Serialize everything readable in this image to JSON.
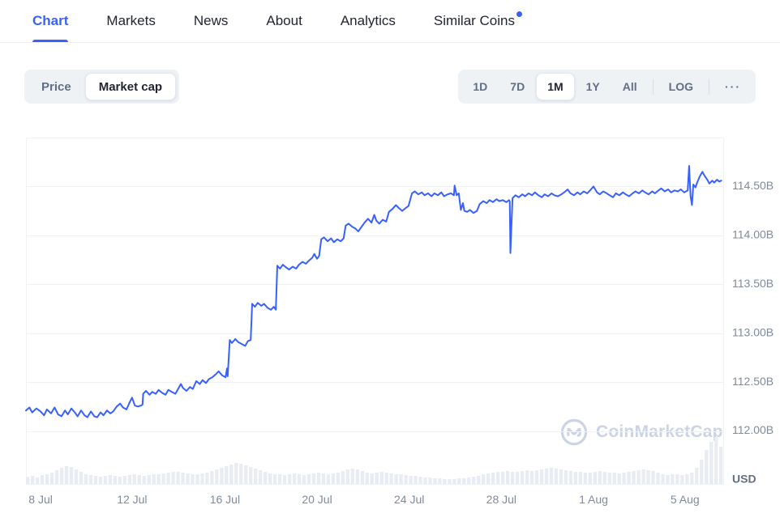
{
  "nav": {
    "tabs": [
      {
        "label": "Chart",
        "active": true
      },
      {
        "label": "Markets",
        "active": false
      },
      {
        "label": "News",
        "active": false
      },
      {
        "label": "About",
        "active": false
      },
      {
        "label": "Analytics",
        "active": false
      },
      {
        "label": "Similar Coins",
        "active": false,
        "badge_dot": true
      }
    ]
  },
  "controls": {
    "metric_toggle": {
      "options": [
        {
          "label": "Price",
          "selected": false
        },
        {
          "label": "Market cap",
          "selected": true
        }
      ]
    },
    "range_buttons": [
      {
        "label": "1D",
        "selected": false
      },
      {
        "label": "7D",
        "selected": false
      },
      {
        "label": "1M",
        "selected": true
      },
      {
        "label": "1Y",
        "selected": false
      },
      {
        "label": "All",
        "selected": false
      }
    ],
    "scale_button": {
      "label": "LOG"
    },
    "more_button": {
      "label": "···"
    }
  },
  "watermark": {
    "text": "CoinMarketCap"
  },
  "chart_data": {
    "type": "line",
    "series_name": "Market cap",
    "unit_label": "USD",
    "legend": false,
    "grid": true,
    "ylim": [
      111.45,
      115.0
    ],
    "y_ticks": [
      {
        "v": 114.5,
        "label": "114.50B"
      },
      {
        "v": 114.0,
        "label": "114.00B"
      },
      {
        "v": 113.5,
        "label": "113.50B"
      },
      {
        "v": 113.0,
        "label": "113.00B"
      },
      {
        "v": 112.5,
        "label": "112.50B"
      },
      {
        "v": 112.0,
        "label": "112.00B"
      }
    ],
    "unit_tick_v": 111.5,
    "x_ticks": [
      {
        "u": 0.021,
        "label": "8 Jul"
      },
      {
        "u": 0.152,
        "label": "12 Jul"
      },
      {
        "u": 0.285,
        "label": "16 Jul"
      },
      {
        "u": 0.417,
        "label": "20 Jul"
      },
      {
        "u": 0.549,
        "label": "24 Jul"
      },
      {
        "u": 0.681,
        "label": "28 Jul"
      },
      {
        "u": 0.813,
        "label": "1 Aug"
      },
      {
        "u": 0.944,
        "label": "5 Aug"
      }
    ],
    "colors": {
      "line": "#3861fb",
      "grid": "#f0f2f6",
      "axis_text": "#808a9d",
      "unit_text": "#616e85",
      "volume": "#e9edf3",
      "watermark": "#ccd3e2",
      "accent": "#3861fb"
    },
    "points": [
      [
        0.0,
        112.21
      ],
      [
        0.005,
        112.24
      ],
      [
        0.009,
        112.19
      ],
      [
        0.015,
        112.23
      ],
      [
        0.021,
        112.2
      ],
      [
        0.026,
        112.16
      ],
      [
        0.03,
        112.22
      ],
      [
        0.036,
        112.18
      ],
      [
        0.041,
        112.24
      ],
      [
        0.046,
        112.17
      ],
      [
        0.051,
        112.15
      ],
      [
        0.056,
        112.21
      ],
      [
        0.06,
        112.17
      ],
      [
        0.065,
        112.23
      ],
      [
        0.07,
        112.19
      ],
      [
        0.074,
        112.15
      ],
      [
        0.079,
        112.21
      ],
      [
        0.084,
        112.16
      ],
      [
        0.088,
        112.14
      ],
      [
        0.093,
        112.2
      ],
      [
        0.098,
        112.15
      ],
      [
        0.102,
        112.14
      ],
      [
        0.107,
        112.19
      ],
      [
        0.111,
        112.16
      ],
      [
        0.116,
        112.21
      ],
      [
        0.121,
        112.18
      ],
      [
        0.125,
        112.2
      ],
      [
        0.13,
        112.25
      ],
      [
        0.135,
        112.28
      ],
      [
        0.139,
        112.24
      ],
      [
        0.144,
        112.22
      ],
      [
        0.149,
        112.3
      ],
      [
        0.152,
        112.34
      ],
      [
        0.156,
        112.26
      ],
      [
        0.16,
        112.25
      ],
      [
        0.165,
        112.26
      ],
      [
        0.167,
        112.27
      ],
      [
        0.168,
        112.38
      ],
      [
        0.172,
        112.41
      ],
      [
        0.177,
        112.37
      ],
      [
        0.181,
        112.4
      ],
      [
        0.186,
        112.38
      ],
      [
        0.19,
        112.42
      ],
      [
        0.195,
        112.39
      ],
      [
        0.2,
        112.37
      ],
      [
        0.204,
        112.42
      ],
      [
        0.209,
        112.4
      ],
      [
        0.214,
        112.38
      ],
      [
        0.218,
        112.43
      ],
      [
        0.222,
        112.48
      ],
      [
        0.225,
        112.44
      ],
      [
        0.23,
        112.41
      ],
      [
        0.235,
        112.45
      ],
      [
        0.239,
        112.43
      ],
      [
        0.244,
        112.51
      ],
      [
        0.249,
        112.48
      ],
      [
        0.253,
        112.52
      ],
      [
        0.258,
        112.49
      ],
      [
        0.262,
        112.53
      ],
      [
        0.267,
        112.55
      ],
      [
        0.272,
        112.58
      ],
      [
        0.276,
        112.61
      ],
      [
        0.281,
        112.57
      ],
      [
        0.286,
        112.55
      ],
      [
        0.288,
        112.64
      ],
      [
        0.289,
        112.56
      ],
      [
        0.292,
        112.93
      ],
      [
        0.295,
        112.9
      ],
      [
        0.3,
        112.94
      ],
      [
        0.304,
        112.91
      ],
      [
        0.309,
        112.89
      ],
      [
        0.314,
        112.87
      ],
      [
        0.318,
        112.92
      ],
      [
        0.322,
        112.93
      ],
      [
        0.324,
        113.3
      ],
      [
        0.328,
        113.27
      ],
      [
        0.332,
        113.31
      ],
      [
        0.337,
        113.28
      ],
      [
        0.341,
        113.3
      ],
      [
        0.346,
        113.26
      ],
      [
        0.351,
        113.24
      ],
      [
        0.355,
        113.27
      ],
      [
        0.358,
        113.24
      ],
      [
        0.36,
        113.69
      ],
      [
        0.364,
        113.66
      ],
      [
        0.368,
        113.7
      ],
      [
        0.373,
        113.67
      ],
      [
        0.377,
        113.65
      ],
      [
        0.382,
        113.68
      ],
      [
        0.387,
        113.66
      ],
      [
        0.391,
        113.7
      ],
      [
        0.396,
        113.73
      ],
      [
        0.401,
        113.71
      ],
      [
        0.405,
        113.74
      ],
      [
        0.41,
        113.77
      ],
      [
        0.413,
        113.81
      ],
      [
        0.417,
        113.76
      ],
      [
        0.42,
        113.79
      ],
      [
        0.423,
        113.96
      ],
      [
        0.427,
        113.98
      ],
      [
        0.432,
        113.94
      ],
      [
        0.437,
        113.97
      ],
      [
        0.441,
        113.93
      ],
      [
        0.446,
        113.96
      ],
      [
        0.451,
        113.94
      ],
      [
        0.455,
        113.97
      ],
      [
        0.458,
        114.1
      ],
      [
        0.462,
        114.12
      ],
      [
        0.467,
        114.09
      ],
      [
        0.472,
        114.07
      ],
      [
        0.476,
        114.04
      ],
      [
        0.481,
        114.09
      ],
      [
        0.485,
        114.13
      ],
      [
        0.49,
        114.17
      ],
      [
        0.495,
        114.13
      ],
      [
        0.499,
        114.21
      ],
      [
        0.502,
        114.15
      ],
      [
        0.506,
        114.12
      ],
      [
        0.511,
        114.16
      ],
      [
        0.516,
        114.14
      ],
      [
        0.52,
        114.24
      ],
      [
        0.525,
        114.27
      ],
      [
        0.53,
        114.31
      ],
      [
        0.534,
        114.28
      ],
      [
        0.539,
        114.25
      ],
      [
        0.544,
        114.28
      ],
      [
        0.548,
        114.3
      ],
      [
        0.553,
        114.43
      ],
      [
        0.557,
        114.45
      ],
      [
        0.562,
        114.42
      ],
      [
        0.567,
        114.44
      ],
      [
        0.571,
        114.41
      ],
      [
        0.576,
        114.43
      ],
      [
        0.581,
        114.4
      ],
      [
        0.585,
        114.43
      ],
      [
        0.59,
        114.41
      ],
      [
        0.595,
        114.44
      ],
      [
        0.599,
        114.4
      ],
      [
        0.604,
        114.42
      ],
      [
        0.609,
        114.43
      ],
      [
        0.613,
        114.41
      ],
      [
        0.614,
        114.51
      ],
      [
        0.617,
        114.41
      ],
      [
        0.62,
        114.43
      ],
      [
        0.623,
        114.26
      ],
      [
        0.626,
        114.33
      ],
      [
        0.628,
        114.25
      ],
      [
        0.632,
        114.24
      ],
      [
        0.636,
        114.26
      ],
      [
        0.641,
        114.23
      ],
      [
        0.646,
        114.25
      ],
      [
        0.65,
        114.32
      ],
      [
        0.655,
        114.35
      ],
      [
        0.66,
        114.33
      ],
      [
        0.664,
        114.36
      ],
      [
        0.669,
        114.34
      ],
      [
        0.674,
        114.37
      ],
      [
        0.678,
        114.35
      ],
      [
        0.683,
        114.36
      ],
      [
        0.688,
        114.34
      ],
      [
        0.692,
        114.36
      ],
      [
        0.693,
        114.35
      ],
      [
        0.694,
        113.82
      ],
      [
        0.697,
        114.38
      ],
      [
        0.701,
        114.41
      ],
      [
        0.706,
        114.39
      ],
      [
        0.711,
        114.42
      ],
      [
        0.715,
        114.4
      ],
      [
        0.72,
        114.43
      ],
      [
        0.725,
        114.41
      ],
      [
        0.729,
        114.44
      ],
      [
        0.734,
        114.41
      ],
      [
        0.739,
        114.39
      ],
      [
        0.743,
        114.42
      ],
      [
        0.748,
        114.4
      ],
      [
        0.753,
        114.43
      ],
      [
        0.757,
        114.41
      ],
      [
        0.762,
        114.4
      ],
      [
        0.767,
        114.42
      ],
      [
        0.771,
        114.44
      ],
      [
        0.776,
        114.47
      ],
      [
        0.78,
        114.43
      ],
      [
        0.785,
        114.41
      ],
      [
        0.79,
        114.44
      ],
      [
        0.794,
        114.42
      ],
      [
        0.799,
        114.45
      ],
      [
        0.804,
        114.43
      ],
      [
        0.808,
        114.46
      ],
      [
        0.813,
        114.5
      ],
      [
        0.818,
        114.44
      ],
      [
        0.822,
        114.42
      ],
      [
        0.827,
        114.45
      ],
      [
        0.832,
        114.43
      ],
      [
        0.836,
        114.41
      ],
      [
        0.841,
        114.39
      ],
      [
        0.845,
        114.43
      ],
      [
        0.85,
        114.41
      ],
      [
        0.855,
        114.44
      ],
      [
        0.859,
        114.42
      ],
      [
        0.864,
        114.4
      ],
      [
        0.869,
        114.43
      ],
      [
        0.873,
        114.45
      ],
      [
        0.878,
        114.43
      ],
      [
        0.883,
        114.46
      ],
      [
        0.887,
        114.44
      ],
      [
        0.892,
        114.42
      ],
      [
        0.897,
        114.45
      ],
      [
        0.901,
        114.43
      ],
      [
        0.906,
        114.46
      ],
      [
        0.91,
        114.48
      ],
      [
        0.915,
        114.45
      ],
      [
        0.92,
        114.47
      ],
      [
        0.924,
        114.44
      ],
      [
        0.929,
        114.46
      ],
      [
        0.934,
        114.45
      ],
      [
        0.938,
        114.47
      ],
      [
        0.943,
        114.44
      ],
      [
        0.948,
        114.46
      ],
      [
        0.95,
        114.71
      ],
      [
        0.952,
        114.4
      ],
      [
        0.954,
        114.31
      ],
      [
        0.956,
        114.52
      ],
      [
        0.959,
        114.49
      ],
      [
        0.962,
        114.55
      ],
      [
        0.965,
        114.6
      ],
      [
        0.969,
        114.65
      ],
      [
        0.972,
        114.61
      ],
      [
        0.976,
        114.57
      ],
      [
        0.979,
        114.53
      ],
      [
        0.983,
        114.56
      ],
      [
        0.986,
        114.54
      ],
      [
        0.99,
        114.57
      ],
      [
        0.993,
        114.55
      ],
      [
        0.996,
        114.56
      ]
    ],
    "volume_bars": {
      "heights": [
        9,
        10,
        8,
        11,
        12,
        14,
        17,
        20,
        22,
        21,
        18,
        15,
        12,
        11,
        10,
        9,
        10,
        11,
        10,
        9,
        10,
        11,
        12,
        11,
        10,
        11,
        12,
        12,
        13,
        14,
        15,
        15,
        14,
        13,
        12,
        12,
        13,
        14,
        16,
        18,
        20,
        22,
        24,
        26,
        25,
        23,
        21,
        19,
        17,
        15,
        13,
        12,
        12,
        11,
        12,
        13,
        12,
        11,
        12,
        13,
        14,
        13,
        12,
        13,
        14,
        16,
        18,
        19,
        18,
        16,
        14,
        13,
        14,
        15,
        14,
        13,
        12,
        12,
        11,
        10,
        10,
        9,
        8,
        8,
        7,
        7,
        6,
        6,
        6,
        7,
        7,
        8,
        9,
        10,
        12,
        13,
        14,
        15,
        15,
        16,
        15,
        15,
        16,
        17,
        16,
        17,
        18,
        19,
        20,
        19,
        18,
        17,
        16,
        15,
        15,
        14,
        14,
        15,
        16,
        15,
        14,
        14,
        13,
        14,
        15,
        16,
        17,
        18,
        17,
        16,
        14,
        12,
        11,
        12,
        12,
        11,
        12,
        14,
        20,
        30,
        42,
        52,
        58,
        46
      ]
    }
  }
}
